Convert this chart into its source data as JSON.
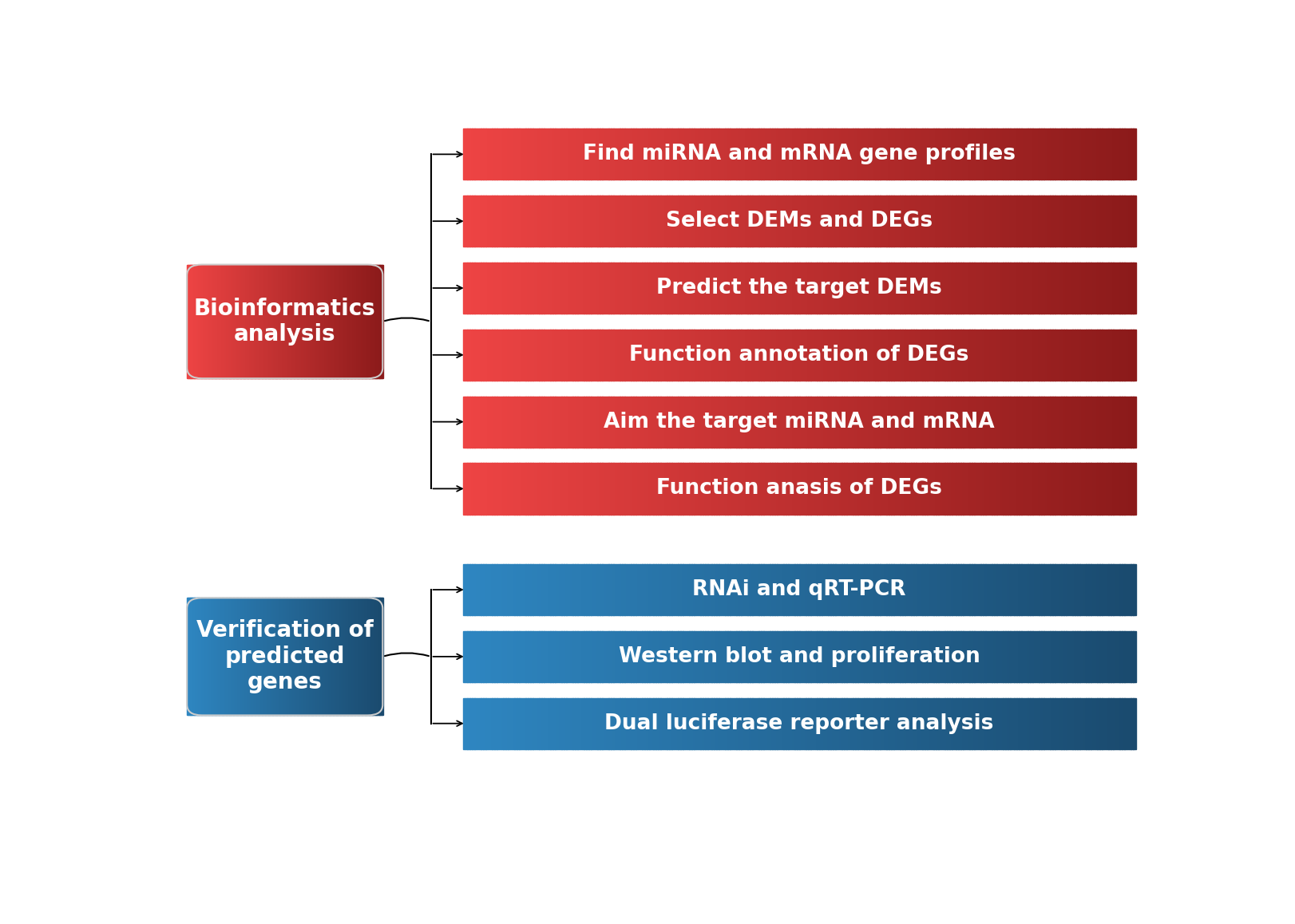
{
  "background_color": "#ffffff",
  "red_section": {
    "label": "Bioinformatics\nanalysis",
    "color_left": "#ee4444",
    "color_right": "#8b1a1a"
  },
  "blue_section": {
    "label": "Verification of\npredicted\ngenes",
    "color_left": "#2e86c1",
    "color_right": "#1a4a6e"
  },
  "red_items": [
    "Find miRNA and mRNA gene profiles",
    "Select DEMs and DEGs",
    "Predict the target DEMs",
    "Function annotation of DEGs",
    "Aim the target miRNA and mRNA",
    "Function anasis of DEGs"
  ],
  "blue_items": [
    "RNAi and qRT-PCR",
    "Western blot and proliferation",
    "Dual luciferase reporter analysis"
  ],
  "red_bar_left": "#ee4444",
  "red_bar_right": "#8b1a1a",
  "blue_bar_left": "#2e86c1",
  "blue_bar_right": "#1a4a6e",
  "text_color": "#ffffff",
  "label_fontsize": 19,
  "header_fontsize": 20
}
